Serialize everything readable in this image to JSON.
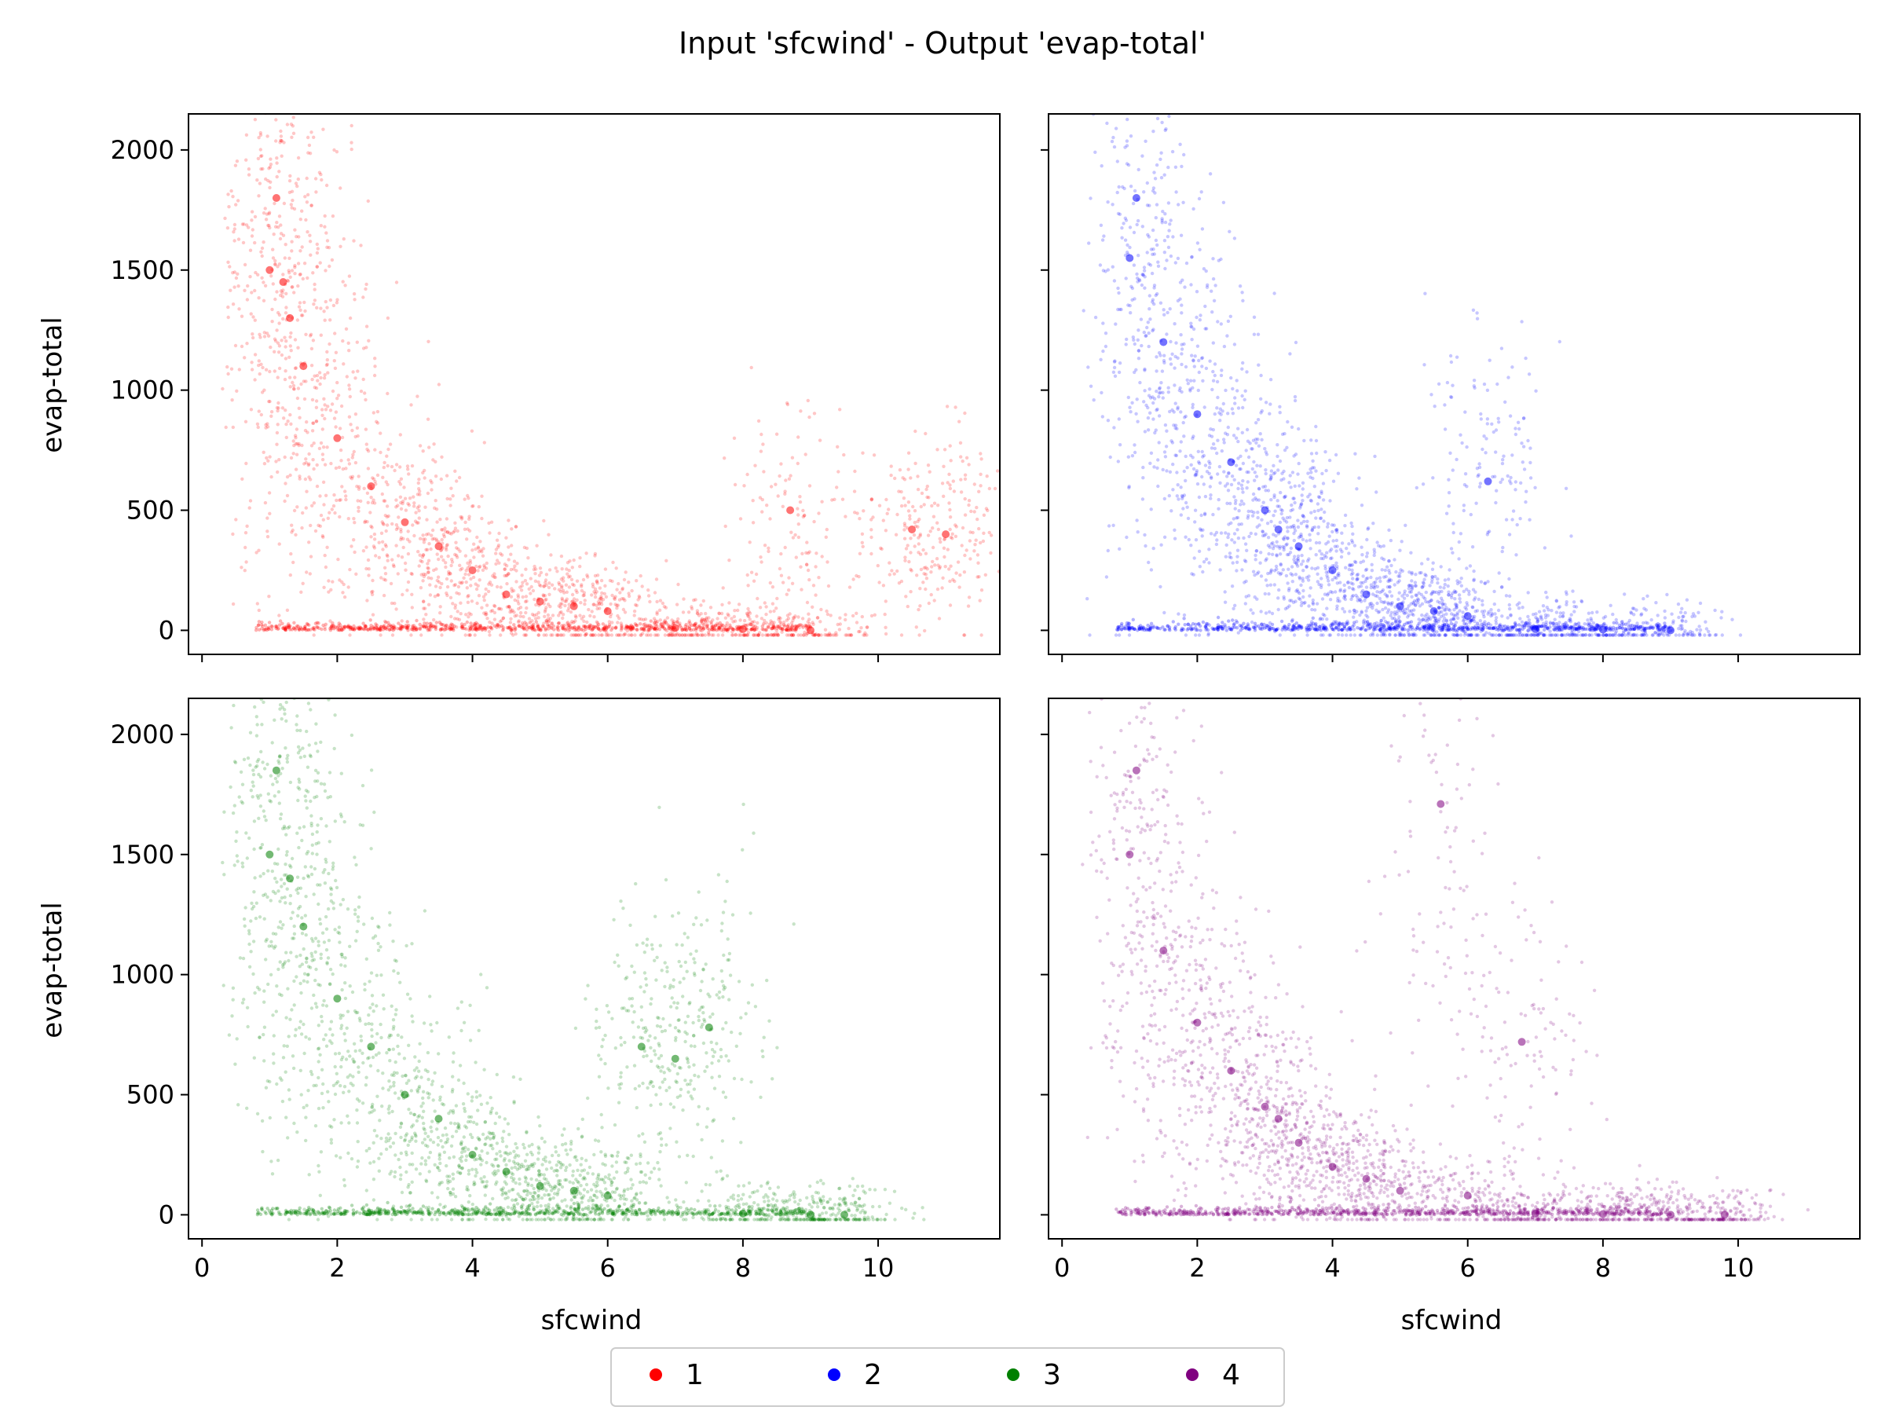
{
  "chart_data": {
    "type": "scatter",
    "title": "Input 'sfcwind' - Output 'evap-total'",
    "xlabel": "sfcwind",
    "ylabel": "evap-total",
    "xlim": [
      -0.2,
      11.8
    ],
    "ylim": [
      -100,
      2150
    ],
    "xticks": [
      0,
      2,
      4,
      6,
      8,
      10
    ],
    "yticks": [
      0,
      500,
      1000,
      1500,
      2000
    ],
    "grid": false,
    "legend_position": "bottom-center",
    "layout": "2x2 panels, shared x and y axes",
    "series": [
      {
        "name": "1",
        "color": "#ff0000",
        "panel": "top-left",
        "approx_points": [
          [
            1.0,
            1500
          ],
          [
            1.1,
            1800
          ],
          [
            1.2,
            1450
          ],
          [
            1.3,
            1300
          ],
          [
            1.5,
            1100
          ],
          [
            2.0,
            800
          ],
          [
            2.5,
            600
          ],
          [
            3.0,
            450
          ],
          [
            3.5,
            350
          ],
          [
            4.0,
            250
          ],
          [
            4.5,
            150
          ],
          [
            5.0,
            120
          ],
          [
            5.5,
            100
          ],
          [
            6.0,
            80
          ],
          [
            7.0,
            10
          ],
          [
            8.0,
            5
          ],
          [
            9.0,
            0
          ],
          [
            10.5,
            420
          ],
          [
            11.0,
            400
          ],
          [
            8.7,
            500
          ]
        ]
      },
      {
        "name": "2",
        "color": "#0000ff",
        "panel": "top-right",
        "approx_points": [
          [
            1.0,
            1550
          ],
          [
            1.1,
            1800
          ],
          [
            1.5,
            1200
          ],
          [
            2.0,
            900
          ],
          [
            2.5,
            700
          ],
          [
            3.0,
            500
          ],
          [
            3.2,
            420
          ],
          [
            3.5,
            350
          ],
          [
            4.0,
            250
          ],
          [
            4.5,
            150
          ],
          [
            5.0,
            100
          ],
          [
            5.5,
            80
          ],
          [
            6.0,
            60
          ],
          [
            7.0,
            5
          ],
          [
            8.0,
            3
          ],
          [
            9.0,
            0
          ],
          [
            6.3,
            620
          ]
        ]
      },
      {
        "name": "3",
        "color": "#008000",
        "panel": "bottom-left",
        "approx_points": [
          [
            1.0,
            1500
          ],
          [
            1.1,
            1850
          ],
          [
            1.3,
            1400
          ],
          [
            1.5,
            1200
          ],
          [
            2.0,
            900
          ],
          [
            2.5,
            700
          ],
          [
            3.0,
            500
          ],
          [
            3.5,
            400
          ],
          [
            4.0,
            250
          ],
          [
            4.5,
            180
          ],
          [
            5.0,
            120
          ],
          [
            5.5,
            100
          ],
          [
            6.0,
            80
          ],
          [
            6.5,
            700
          ],
          [
            7.0,
            650
          ],
          [
            7.5,
            780
          ],
          [
            8.0,
            5
          ],
          [
            9.0,
            0
          ],
          [
            9.5,
            0
          ]
        ]
      },
      {
        "name": "4",
        "color": "#800080",
        "panel": "bottom-right",
        "approx_points": [
          [
            1.0,
            1500
          ],
          [
            1.1,
            1850
          ],
          [
            1.5,
            1100
          ],
          [
            2.0,
            800
          ],
          [
            2.5,
            600
          ],
          [
            3.0,
            450
          ],
          [
            3.2,
            400
          ],
          [
            3.5,
            300
          ],
          [
            4.0,
            200
          ],
          [
            4.5,
            150
          ],
          [
            5.0,
            100
          ],
          [
            5.6,
            1710
          ],
          [
            6.0,
            80
          ],
          [
            6.8,
            720
          ],
          [
            7.0,
            5
          ],
          [
            8.0,
            3
          ],
          [
            9.0,
            0
          ],
          [
            9.8,
            0
          ]
        ]
      }
    ]
  }
}
